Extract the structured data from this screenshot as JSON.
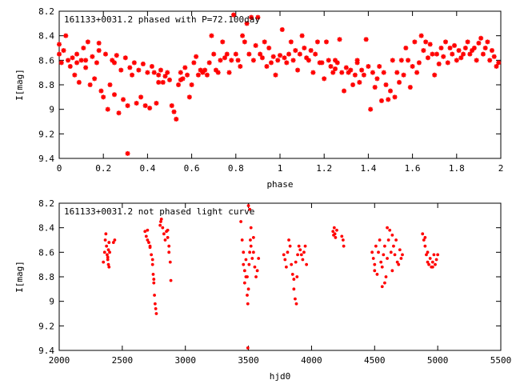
{
  "chart_data": [
    {
      "type": "scatter",
      "title": "161133+0031.2 phased with P=72.100day",
      "xlabel": "phase",
      "ylabel": "I[mag]",
      "xlim": [
        0,
        2
      ],
      "ylim": [
        9.4,
        8.2
      ],
      "y_inverted": true,
      "xticks": [
        0,
        0.2,
        0.4,
        0.6,
        0.8,
        1,
        1.2,
        1.4,
        1.6,
        1.8,
        2
      ],
      "yticks": [
        8.2,
        8.4,
        8.6,
        8.8,
        9,
        9.2,
        9.4
      ],
      "marker_color": "#ff0000",
      "grid": false,
      "points": [
        [
          0.0,
          8.47
        ],
        [
          0.0,
          8.55
        ],
        [
          0.01,
          8.62
        ],
        [
          0.02,
          8.52
        ],
        [
          0.03,
          8.4
        ],
        [
          0.04,
          8.6
        ],
        [
          0.05,
          8.65
        ],
        [
          0.06,
          8.58
        ],
        [
          0.07,
          8.72
        ],
        [
          0.08,
          8.62
        ],
        [
          0.09,
          8.78
        ],
        [
          0.1,
          8.6
        ],
        [
          0.11,
          8.5
        ],
        [
          0.12,
          8.66
        ],
        [
          0.13,
          8.45
        ],
        [
          0.14,
          8.8
        ],
        [
          0.15,
          8.57
        ],
        [
          0.16,
          8.75
        ],
        [
          0.17,
          8.62
        ],
        [
          0.18,
          8.46
        ],
        [
          0.19,
          8.85
        ],
        [
          0.2,
          8.9
        ],
        [
          0.21,
          8.55
        ],
        [
          0.22,
          9.0
        ],
        [
          0.23,
          8.8
        ],
        [
          0.24,
          8.6
        ],
        [
          0.25,
          8.88
        ],
        [
          0.26,
          8.56
        ],
        [
          0.27,
          9.03
        ],
        [
          0.28,
          8.68
        ],
        [
          0.29,
          8.92
        ],
        [
          0.3,
          8.58
        ],
        [
          0.31,
          8.97
        ],
        [
          0.32,
          8.66
        ],
        [
          0.33,
          8.72
        ],
        [
          0.34,
          8.62
        ],
        [
          0.35,
          8.95
        ],
        [
          0.36,
          8.68
        ],
        [
          0.37,
          8.9
        ],
        [
          0.38,
          8.63
        ],
        [
          0.39,
          8.97
        ],
        [
          0.4,
          8.7
        ],
        [
          0.41,
          8.99
        ],
        [
          0.42,
          8.65
        ],
        [
          0.43,
          8.7
        ],
        [
          0.44,
          8.95
        ],
        [
          0.45,
          8.72
        ],
        [
          0.46,
          8.68
        ],
        [
          0.47,
          8.78
        ],
        [
          0.48,
          8.73
        ],
        [
          0.49,
          8.7
        ],
        [
          0.5,
          8.76
        ],
        [
          0.51,
          8.97
        ],
        [
          0.52,
          9.02
        ],
        [
          0.53,
          9.08
        ],
        [
          0.54,
          8.8
        ],
        [
          0.55,
          8.7
        ],
        [
          0.56,
          8.75
        ],
        [
          0.57,
          8.66
        ],
        [
          0.58,
          8.72
        ],
        [
          0.59,
          8.9
        ],
        [
          0.6,
          8.8
        ],
        [
          0.61,
          8.62
        ],
        [
          0.62,
          8.57
        ],
        [
          0.63,
          8.72
        ],
        [
          0.64,
          8.68
        ],
        [
          0.65,
          8.7
        ],
        [
          0.66,
          8.68
        ],
        [
          0.67,
          8.72
        ],
        [
          0.68,
          8.62
        ],
        [
          0.69,
          8.4
        ],
        [
          0.7,
          8.55
        ],
        [
          0.71,
          8.68
        ],
        [
          0.72,
          8.7
        ],
        [
          0.73,
          8.6
        ],
        [
          0.74,
          8.45
        ],
        [
          0.75,
          8.58
        ],
        [
          0.76,
          8.55
        ],
        [
          0.77,
          8.7
        ],
        [
          0.78,
          8.6
        ],
        [
          0.79,
          8.23
        ],
        [
          0.8,
          8.55
        ],
        [
          0.81,
          8.6
        ],
        [
          0.82,
          8.65
        ],
        [
          0.83,
          8.4
        ],
        [
          0.84,
          8.45
        ],
        [
          0.85,
          8.3
        ],
        [
          0.86,
          8.55
        ],
        [
          0.87,
          8.25
        ],
        [
          0.88,
          8.6
        ],
        [
          0.89,
          8.48
        ],
        [
          0.9,
          8.25
        ],
        [
          0.91,
          8.55
        ],
        [
          0.92,
          8.58
        ],
        [
          0.93,
          8.45
        ],
        [
          0.94,
          8.65
        ],
        [
          0.95,
          8.5
        ],
        [
          0.96,
          8.62
        ],
        [
          0.97,
          8.57
        ],
        [
          0.98,
          8.72
        ],
        [
          0.99,
          8.6
        ],
        [
          1.0,
          8.56
        ],
        [
          1.01,
          8.35
        ],
        [
          1.02,
          8.58
        ],
        [
          1.03,
          8.62
        ],
        [
          1.04,
          8.55
        ],
        [
          1.05,
          8.45
        ],
        [
          1.06,
          8.6
        ],
        [
          1.07,
          8.52
        ],
        [
          1.08,
          8.68
        ],
        [
          1.09,
          8.55
        ],
        [
          1.1,
          8.4
        ],
        [
          1.11,
          8.5
        ],
        [
          1.12,
          8.58
        ],
        [
          1.13,
          8.6
        ],
        [
          1.14,
          8.52
        ],
        [
          1.15,
          8.7
        ],
        [
          1.16,
          8.55
        ],
        [
          1.17,
          8.45
        ],
        [
          1.18,
          8.62
        ],
        [
          1.19,
          8.62
        ],
        [
          1.2,
          8.75
        ],
        [
          1.21,
          8.45
        ],
        [
          1.22,
          8.6
        ],
        [
          1.23,
          8.65
        ],
        [
          1.24,
          8.7
        ],
        [
          1.25,
          8.67
        ],
        [
          1.26,
          8.62
        ],
        [
          1.27,
          8.43
        ],
        [
          1.28,
          8.7
        ],
        [
          1.29,
          8.85
        ],
        [
          1.3,
          8.66
        ],
        [
          1.31,
          8.7
        ],
        [
          1.32,
          8.68
        ],
        [
          1.33,
          8.8
        ],
        [
          1.34,
          8.72
        ],
        [
          1.35,
          8.62
        ],
        [
          1.36,
          8.78
        ],
        [
          1.37,
          8.68
        ],
        [
          1.38,
          8.72
        ],
        [
          1.39,
          8.43
        ],
        [
          1.4,
          8.65
        ],
        [
          1.41,
          9.0
        ],
        [
          1.42,
          8.7
        ],
        [
          1.43,
          8.82
        ],
        [
          1.44,
          8.75
        ],
        [
          1.45,
          8.65
        ],
        [
          1.46,
          8.93
        ],
        [
          1.47,
          8.7
        ],
        [
          1.48,
          8.8
        ],
        [
          1.49,
          8.92
        ],
        [
          1.5,
          8.85
        ],
        [
          1.51,
          8.6
        ],
        [
          1.52,
          8.9
        ],
        [
          1.53,
          8.7
        ],
        [
          1.54,
          8.78
        ],
        [
          1.55,
          8.6
        ],
        [
          1.56,
          8.72
        ],
        [
          1.57,
          8.5
        ],
        [
          1.58,
          8.6
        ],
        [
          1.59,
          8.82
        ],
        [
          1.6,
          8.65
        ],
        [
          1.61,
          8.45
        ],
        [
          1.62,
          8.7
        ],
        [
          1.63,
          8.62
        ],
        [
          1.64,
          8.4
        ],
        [
          1.65,
          8.52
        ],
        [
          1.66,
          8.45
        ],
        [
          1.67,
          8.58
        ],
        [
          1.68,
          8.47
        ],
        [
          1.69,
          8.55
        ],
        [
          1.7,
          8.72
        ],
        [
          1.71,
          8.55
        ],
        [
          1.72,
          8.63
        ],
        [
          1.73,
          8.5
        ],
        [
          1.74,
          8.57
        ],
        [
          1.75,
          8.45
        ],
        [
          1.76,
          8.62
        ],
        [
          1.77,
          8.5
        ],
        [
          1.78,
          8.55
        ],
        [
          1.79,
          8.48
        ],
        [
          1.8,
          8.6
        ],
        [
          1.81,
          8.52
        ],
        [
          1.82,
          8.58
        ],
        [
          1.83,
          8.55
        ],
        [
          1.84,
          8.5
        ],
        [
          1.85,
          8.45
        ],
        [
          1.86,
          8.55
        ],
        [
          1.87,
          8.52
        ],
        [
          1.88,
          8.5
        ],
        [
          1.89,
          8.6
        ],
        [
          1.9,
          8.46
        ],
        [
          1.91,
          8.42
        ],
        [
          1.92,
          8.55
        ],
        [
          1.93,
          8.5
        ],
        [
          1.94,
          8.45
        ],
        [
          1.95,
          8.6
        ],
        [
          1.96,
          8.52
        ],
        [
          1.97,
          8.57
        ],
        [
          1.98,
          8.65
        ],
        [
          1.99,
          8.62
        ],
        [
          0.31,
          9.36
        ],
        [
          0.12,
          8.6
        ],
        [
          0.18,
          8.52
        ],
        [
          0.25,
          8.62
        ],
        [
          0.08,
          8.55
        ],
        [
          0.45,
          8.78
        ],
        [
          0.55,
          8.76
        ],
        [
          1.25,
          8.6
        ],
        [
          1.35,
          8.6
        ]
      ]
    },
    {
      "type": "scatter",
      "title": "161133+0031.2 not phased light curve",
      "xlabel": "hjd0",
      "ylabel": "I[mag]",
      "xlim": [
        2000,
        5500
      ],
      "ylim": [
        9.4,
        8.2
      ],
      "y_inverted": true,
      "xticks": [
        2000,
        2500,
        3000,
        3500,
        4000,
        4500,
        5000,
        5500
      ],
      "yticks": [
        8.2,
        8.4,
        8.6,
        8.8,
        9,
        9.2,
        9.4
      ],
      "marker_color": "#ff0000",
      "grid": false,
      "points": [
        [
          2350,
          8.68
        ],
        [
          2360,
          8.6
        ],
        [
          2365,
          8.5
        ],
        [
          2370,
          8.45
        ],
        [
          2375,
          8.55
        ],
        [
          2380,
          8.62
        ],
        [
          2385,
          8.66
        ],
        [
          2390,
          8.7
        ],
        [
          2395,
          8.72
        ],
        [
          2400,
          8.6
        ],
        [
          2395,
          8.52
        ],
        [
          2390,
          8.58
        ],
        [
          2385,
          8.64
        ],
        [
          2440,
          8.5
        ],
        [
          2430,
          8.52
        ],
        [
          2680,
          8.43
        ],
        [
          2690,
          8.47
        ],
        [
          2700,
          8.5
        ],
        [
          2710,
          8.52
        ],
        [
          2720,
          8.56
        ],
        [
          2730,
          8.62
        ],
        [
          2740,
          8.7
        ],
        [
          2745,
          8.78
        ],
        [
          2750,
          8.85
        ],
        [
          2755,
          8.95
        ],
        [
          2760,
          9.02
        ],
        [
          2765,
          9.06
        ],
        [
          2770,
          9.1
        ],
        [
          2700,
          8.42
        ],
        [
          2720,
          8.55
        ],
        [
          2740,
          8.66
        ],
        [
          2750,
          8.82
        ],
        [
          2800,
          8.38
        ],
        [
          2805,
          8.35
        ],
        [
          2810,
          8.33
        ],
        [
          2820,
          8.4
        ],
        [
          2830,
          8.45
        ],
        [
          2840,
          8.5
        ],
        [
          2850,
          8.43
        ],
        [
          2860,
          8.48
        ],
        [
          2870,
          8.6
        ],
        [
          2880,
          8.68
        ],
        [
          2885,
          8.83
        ],
        [
          2860,
          8.42
        ],
        [
          2870,
          8.55
        ],
        [
          3440,
          8.35
        ],
        [
          3450,
          8.5
        ],
        [
          3460,
          8.6
        ],
        [
          3470,
          8.75
        ],
        [
          3480,
          8.8
        ],
        [
          3490,
          8.95
        ],
        [
          3495,
          9.02
        ],
        [
          3500,
          8.9
        ],
        [
          3505,
          8.7
        ],
        [
          3510,
          8.6
        ],
        [
          3515,
          8.5
        ],
        [
          3520,
          8.4
        ],
        [
          3500,
          8.22
        ],
        [
          3510,
          8.25
        ],
        [
          3530,
          8.65
        ],
        [
          3540,
          8.6
        ],
        [
          3550,
          8.72
        ],
        [
          3560,
          8.8
        ],
        [
          3570,
          8.75
        ],
        [
          3580,
          8.65
        ],
        [
          3460,
          8.7
        ],
        [
          3480,
          8.66
        ],
        [
          3495,
          9.38
        ],
        [
          3520,
          8.55
        ],
        [
          3540,
          8.48
        ],
        [
          3470,
          8.85
        ],
        [
          3490,
          8.8
        ],
        [
          3780,
          8.62
        ],
        [
          3790,
          8.66
        ],
        [
          3800,
          8.72
        ],
        [
          3810,
          8.6
        ],
        [
          3820,
          8.5
        ],
        [
          3830,
          8.55
        ],
        [
          3840,
          8.7
        ],
        [
          3850,
          8.78
        ],
        [
          3860,
          8.9
        ],
        [
          3870,
          8.98
        ],
        [
          3880,
          9.02
        ],
        [
          3885,
          8.8
        ],
        [
          3890,
          8.62
        ],
        [
          3900,
          8.55
        ],
        [
          3910,
          8.58
        ],
        [
          3920,
          8.62
        ],
        [
          3930,
          8.66
        ],
        [
          3940,
          8.6
        ],
        [
          3950,
          8.55
        ],
        [
          3960,
          8.7
        ],
        [
          3860,
          8.82
        ],
        [
          3875,
          8.68
        ],
        [
          4170,
          8.43
        ],
        [
          4175,
          8.46
        ],
        [
          4180,
          8.4
        ],
        [
          4185,
          8.45
        ],
        [
          4190,
          8.48
        ],
        [
          4200,
          8.42
        ],
        [
          4240,
          8.47
        ],
        [
          4250,
          8.5
        ],
        [
          4255,
          8.55
        ],
        [
          4480,
          8.6
        ],
        [
          4490,
          8.65
        ],
        [
          4500,
          8.7
        ],
        [
          4510,
          8.55
        ],
        [
          4520,
          8.78
        ],
        [
          4530,
          8.6
        ],
        [
          4540,
          8.5
        ],
        [
          4550,
          8.68
        ],
        [
          4560,
          8.72
        ],
        [
          4570,
          8.62
        ],
        [
          4580,
          8.55
        ],
        [
          4590,
          8.8
        ],
        [
          4600,
          8.65
        ],
        [
          4610,
          8.5
        ],
        [
          4620,
          8.42
        ],
        [
          4630,
          8.6
        ],
        [
          4640,
          8.75
        ],
        [
          4650,
          8.55
        ],
        [
          4660,
          8.62
        ],
        [
          4670,
          8.5
        ],
        [
          4680,
          8.68
        ],
        [
          4690,
          8.7
        ],
        [
          4700,
          8.58
        ],
        [
          4710,
          8.65
        ],
        [
          4720,
          8.62
        ],
        [
          4560,
          8.88
        ],
        [
          4600,
          8.4
        ],
        [
          4640,
          8.46
        ],
        [
          4500,
          8.75
        ],
        [
          4580,
          8.85
        ],
        [
          4880,
          8.45
        ],
        [
          4890,
          8.5
        ],
        [
          4900,
          8.55
        ],
        [
          4910,
          8.62
        ],
        [
          4920,
          8.68
        ],
        [
          4930,
          8.7
        ],
        [
          4940,
          8.65
        ],
        [
          4950,
          8.72
        ],
        [
          4960,
          8.68
        ],
        [
          4970,
          8.62
        ],
        [
          4980,
          8.7
        ],
        [
          4990,
          8.66
        ],
        [
          5000,
          8.62
        ],
        [
          4920,
          8.6
        ],
        [
          4960,
          8.72
        ],
        [
          4900,
          8.48
        ]
      ]
    }
  ]
}
